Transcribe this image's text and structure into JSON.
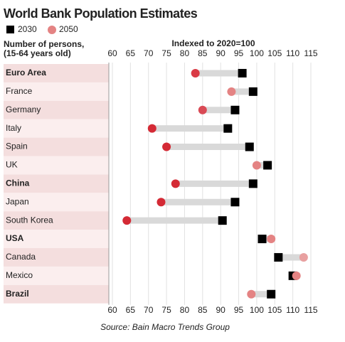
{
  "chart_data": {
    "type": "dumbbell",
    "title": "World Bank Population Estimates",
    "y_label": [
      "Number of persons,",
      "(15-64 years old)"
    ],
    "x_label": "Indexed to 2020=100",
    "source": "Source: Bain Macro Trends Group",
    "categories": [
      "Euro Area",
      "France",
      "Germany",
      "Italy",
      "Spain",
      "UK",
      "China",
      "Japan",
      "South Korea",
      "USA",
      "Canada",
      "Mexico",
      "Brazil"
    ],
    "bold": [
      true,
      false,
      false,
      false,
      false,
      false,
      true,
      false,
      false,
      true,
      false,
      false,
      true
    ],
    "series": [
      {
        "name": "2030",
        "color": "#000000",
        "marker": "square",
        "values": [
          96,
          99,
          94,
          92,
          98,
          103,
          99,
          94,
          90.5,
          101.5,
          106,
          110,
          104
        ]
      },
      {
        "name": "2050",
        "color": "#e48383",
        "marker": "circle",
        "values": [
          83,
          93,
          85,
          71,
          75,
          100,
          77.5,
          73.5,
          64,
          104,
          113,
          111,
          98.5
        ],
        "colors": [
          "#d93a45",
          "#e48383",
          "#d94a55",
          "#d42a35",
          "#d42a35",
          "#e48383",
          "#d42a35",
          "#d42a35",
          "#d42a35",
          "#e48383",
          "#e8a0a0",
          "#e48383",
          "#e48383"
        ]
      }
    ],
    "connector_color": "#d9d9d9",
    "xlim": [
      60,
      115
    ],
    "xticks": [
      60,
      65,
      70,
      75,
      80,
      85,
      90,
      95,
      100,
      105,
      110,
      115
    ],
    "grid": true
  }
}
